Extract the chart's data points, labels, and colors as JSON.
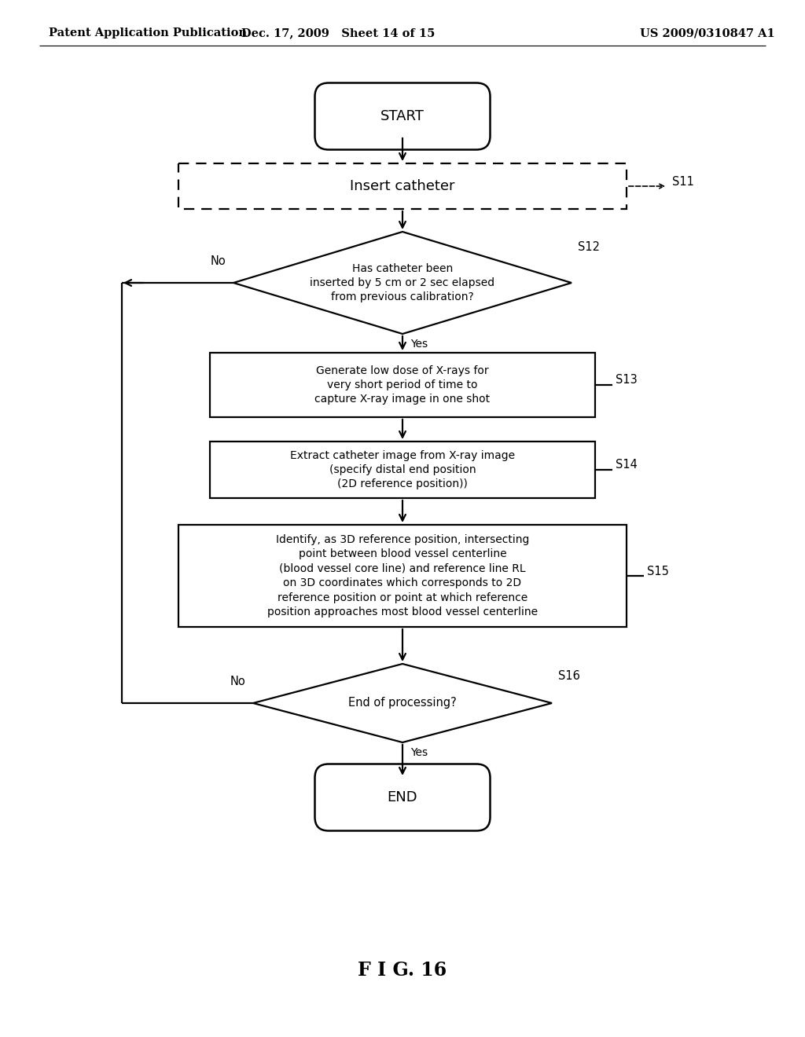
{
  "header_left": "Patent Application Publication",
  "header_mid": "Dec. 17, 2009   Sheet 14 of 15",
  "header_right": "US 2009/0310847 A1",
  "figure_label": "F I G. 16",
  "bg_color": "#ffffff",
  "line_color": "#000000",
  "start_label": "START",
  "end_label": "END",
  "s11_label": "Insert catheter",
  "s11_step": "S11",
  "s12_label": "Has catheter been\ninserted by 5 cm or 2 sec elapsed\nfrom previous calibration?",
  "s12_step": "S12",
  "s13_label": "Generate low dose of X-rays for\nvery short period of time to\ncapture X-ray image in one shot",
  "s13_step": "S13",
  "s14_label": "Extract catheter image from X-ray image\n(specify distal end position\n(2D reference position))",
  "s14_step": "S14",
  "s15_label": "Identify, as 3D reference position, intersecting\npoint between blood vessel centerline\n(blood vessel core line) and reference line RL\non 3D coordinates which corresponds to 2D\nreference position or point at which reference\nposition approaches most blood vessel centerline",
  "s15_step": "S15",
  "s16_label": "End of processing?",
  "s16_step": "S16",
  "yes_label": "Yes",
  "no_label": "No"
}
